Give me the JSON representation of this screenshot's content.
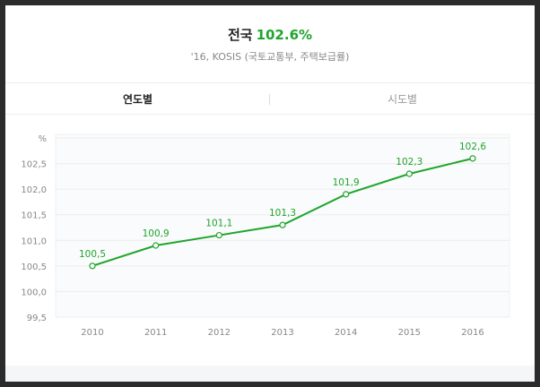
{
  "header": {
    "title_prefix": "전국",
    "title_value": "102.6%",
    "subtitle": "'16, KOSIS (국토교통부, 주택보급률)"
  },
  "tabs": [
    {
      "label": "연도별",
      "active": true
    },
    {
      "label": "시도별",
      "active": false
    }
  ],
  "colors": {
    "accent": "#1fa52b",
    "grid": "#ececec",
    "tick_text": "#888888"
  },
  "chart_data": {
    "type": "line",
    "title": "",
    "xlabel": "",
    "ylabel": "%",
    "categories": [
      "2010",
      "2011",
      "2012",
      "2013",
      "2014",
      "2015",
      "2016"
    ],
    "values": [
      100.5,
      100.9,
      101.1,
      101.3,
      101.9,
      102.3,
      102.6
    ],
    "data_labels": [
      "100,5",
      "100,9",
      "101,1",
      "101,3",
      "101,9",
      "102,3",
      "102,6"
    ],
    "yticks": [
      99.5,
      100.0,
      100.5,
      101.0,
      101.5,
      102.0,
      102.5
    ],
    "ytick_labels": [
      "99,5",
      "100,0",
      "100,5",
      "101,0",
      "101,5",
      "102,0",
      "102,5"
    ],
    "ylim": [
      99.5,
      103.0
    ],
    "grid": true,
    "legend": "none"
  }
}
